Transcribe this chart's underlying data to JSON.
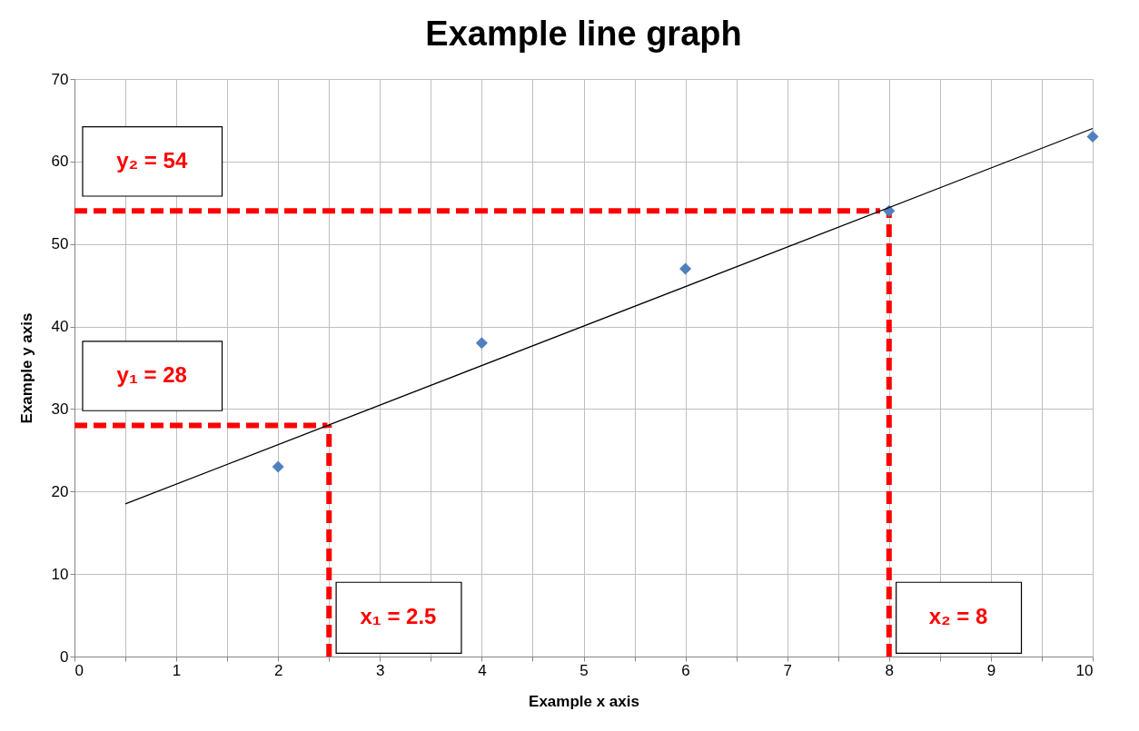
{
  "chart_data": {
    "type": "scatter",
    "title": "Example line graph",
    "xlabel": "Example x axis",
    "ylabel": "Example y axis",
    "series": [
      {
        "color": "#4f81bd",
        "marker": "diamond",
        "x": [
          2,
          4,
          6,
          8,
          10
        ],
        "values": [
          23,
          38,
          47,
          54,
          63
        ]
      },
      {
        "type": "line",
        "color": "#000000",
        "marker": "none",
        "line_style": "solid",
        "x": [
          0.5,
          10
        ],
        "values": [
          18.5,
          64
        ]
      }
    ],
    "xlim": [
      0,
      10
    ],
    "ylim": [
      0,
      70
    ],
    "xticks": [
      0,
      {
        "value": 0.5,
        "label": null
      },
      1,
      {
        "value": 1.5,
        "label": null
      },
      2,
      {
        "value": 2.5,
        "label": null
      },
      3,
      {
        "value": 3.5,
        "label": null
      },
      4,
      {
        "value": 4.5,
        "label": null
      },
      5,
      {
        "value": 5.5,
        "label": null
      },
      6,
      {
        "value": 6.5,
        "label": null
      },
      7,
      {
        "value": 7.5,
        "label": null
      },
      8,
      {
        "value": 8.5,
        "label": null
      },
      9,
      {
        "value": 9.5,
        "label": null
      },
      10
    ],
    "yticks": [
      0,
      10,
      20,
      30,
      40,
      50,
      60,
      70
    ],
    "ref_lines": [
      {
        "axis": "y",
        "value": 28,
        "label": "y₁ = 28",
        "color": "#ff0000",
        "line_style": "dashed"
      },
      {
        "axis": "x",
        "value": 2.5,
        "label": "x₁ = 2.5",
        "color": "#ff0000",
        "line_style": "dashed"
      },
      {
        "axis": "y",
        "value": 54,
        "label": "y₂ = 54",
        "color": "#ff0000",
        "line_style": "dashed"
      },
      {
        "axis": "x",
        "value": 8,
        "label": "x₂ = 8",
        "color": "#ff0000",
        "line_style": "dashed"
      }
    ],
    "grid": true
  }
}
